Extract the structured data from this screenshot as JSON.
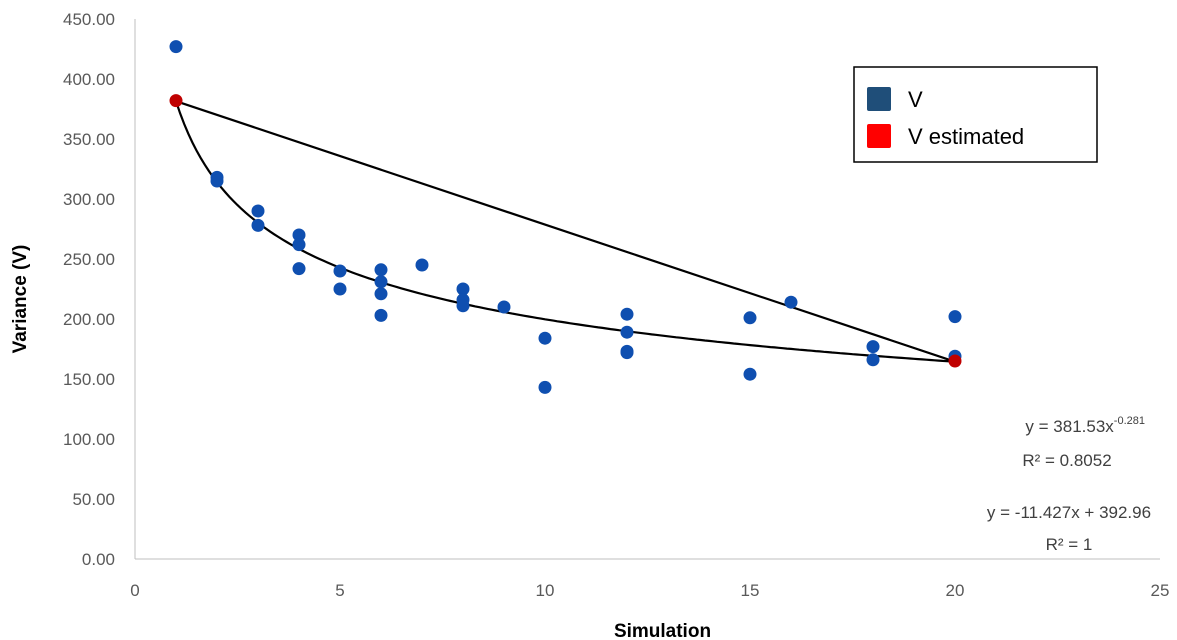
{
  "chart_data": {
    "type": "scatter",
    "xlabel": "Simulation",
    "ylabel": "Variance (V)",
    "xlim": [
      0,
      25
    ],
    "ylim": [
      0,
      450
    ],
    "x_ticks": [
      "0",
      "5",
      "10",
      "15",
      "20",
      "25"
    ],
    "y_ticks": [
      "0.00",
      "50.00",
      "100.00",
      "150.00",
      "200.00",
      "250.00",
      "300.00",
      "350.00",
      "400.00",
      "450.00"
    ],
    "grid": false,
    "legend_position": "top-right",
    "series": [
      {
        "name": "V",
        "color": "#0F4FB0",
        "points": [
          [
            1,
            427
          ],
          [
            2,
            318
          ],
          [
            2,
            315
          ],
          [
            3,
            290
          ],
          [
            3,
            278
          ],
          [
            4,
            270
          ],
          [
            4,
            262
          ],
          [
            4,
            242
          ],
          [
            5,
            240
          ],
          [
            5,
            225
          ],
          [
            6,
            241
          ],
          [
            6,
            231
          ],
          [
            6,
            221
          ],
          [
            6,
            203
          ],
          [
            7,
            245
          ],
          [
            8,
            225
          ],
          [
            8,
            216
          ],
          [
            8,
            211
          ],
          [
            9,
            210
          ],
          [
            10,
            184
          ],
          [
            10,
            143
          ],
          [
            12,
            204
          ],
          [
            12,
            189
          ],
          [
            12,
            173
          ],
          [
            12,
            172
          ],
          [
            15,
            201
          ],
          [
            15,
            154
          ],
          [
            16,
            214
          ],
          [
            18,
            177
          ],
          [
            18,
            166
          ],
          [
            20,
            202
          ],
          [
            20,
            169
          ]
        ]
      },
      {
        "name": "V estimated",
        "color": "#C00000",
        "points": [
          [
            1,
            382
          ],
          [
            20,
            165
          ]
        ]
      }
    ],
    "legend": [
      {
        "label": "V",
        "swatch": "#1F4E79"
      },
      {
        "label": "V estimated",
        "swatch": "#FF0000"
      }
    ],
    "trendlines": [
      {
        "type": "power",
        "a": 381.53,
        "b": -0.281,
        "x_range": [
          1,
          20
        ]
      },
      {
        "type": "linear",
        "slope": -11.427,
        "intercept": 392.96,
        "x_range": [
          1,
          20
        ]
      }
    ],
    "annotations": {
      "power_eq_base": "y = 381.53x",
      "power_eq_exp": "-0.281",
      "power_r2": "R² = 0.8052",
      "linear_eq": "y = -11.427x + 392.96",
      "linear_r2": "R² = 1"
    }
  }
}
